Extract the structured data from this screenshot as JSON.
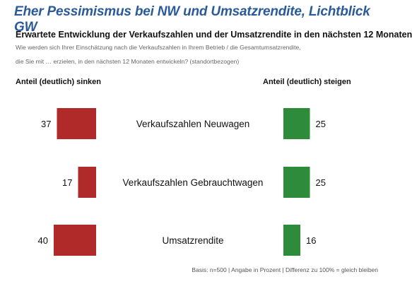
{
  "header": {
    "headline": "Eher Pessimismus bei NW und Umsatzrendite, Lichtblick GW",
    "subtitle": "Erwartete Entwicklung der Verkaufszahlen und der Umsatzrendite in den nächsten 12 Monaten",
    "question_line1": "Wie werden sich Ihrer Einschätzung nach die Verkaufszahlen in Ihrem Betrieb / die Gesamtumsatzrendite,",
    "question_line2": "die Sie mit … erzielen, in den nächsten 12 Monaten entwickeln? (standortbezogen)"
  },
  "columns": {
    "left_label": "Anteil (deutlich) sinken",
    "right_label": "Anteil (deutlich) steigen"
  },
  "footnote": "Basis: n=500 | Angabe in Prozent | Differenz zu 100% = gleich bleiben",
  "colors": {
    "headline": "#2a5a9a",
    "decline": "#b02a2a",
    "increase": "#2e8b3a"
  },
  "chart_data": {
    "type": "bar",
    "categories": [
      "Verkaufszahlen Neuwagen",
      "Verkaufszahlen Gebrauchtwagen",
      "Umsatzrendite"
    ],
    "series": [
      {
        "name": "Anteil (deutlich) sinken",
        "values": [
          37,
          17,
          40
        ]
      },
      {
        "name": "Anteil (deutlich) steigen",
        "values": [
          25,
          25,
          16
        ]
      }
    ],
    "unit": "%"
  }
}
